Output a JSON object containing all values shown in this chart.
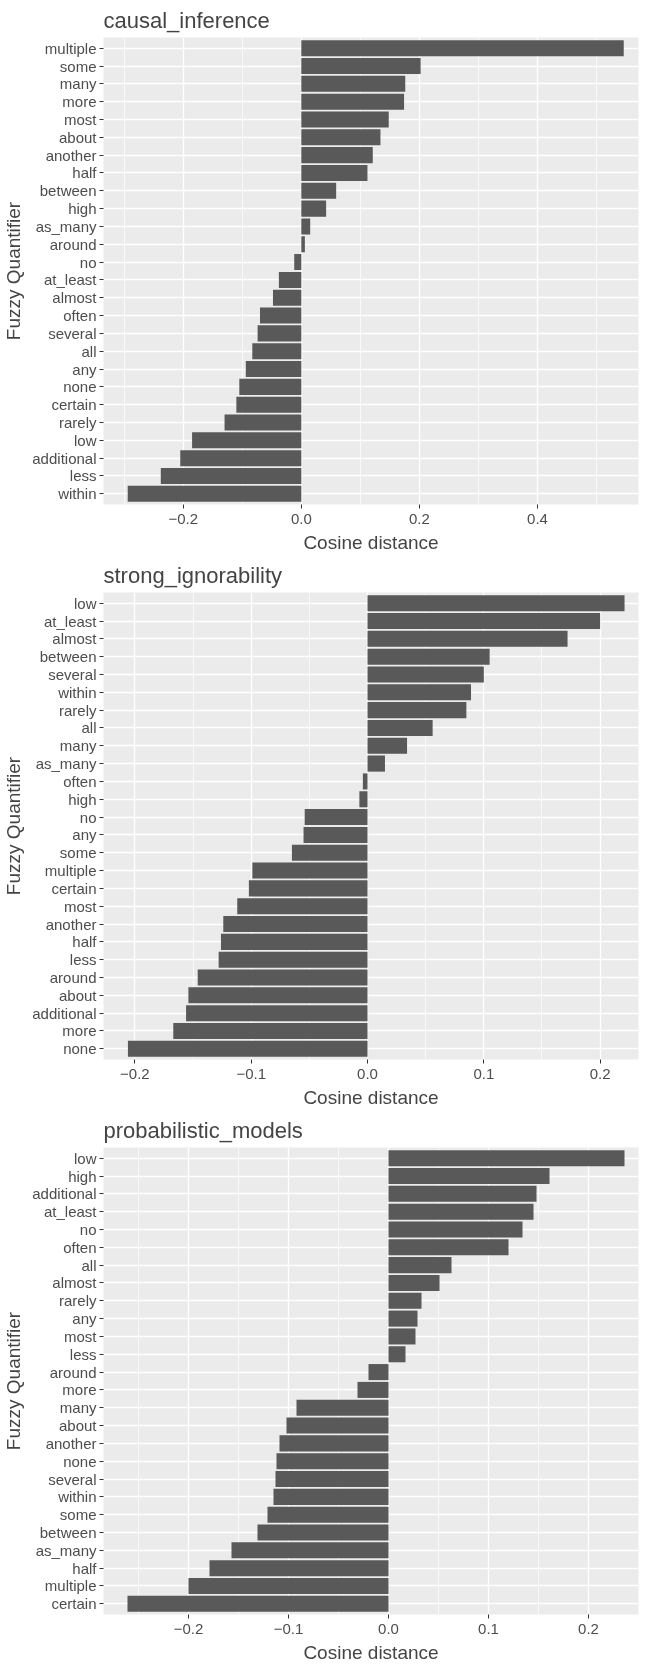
{
  "chart_data": [
    {
      "type": "bar",
      "orientation": "horizontal",
      "title": "causal_inference",
      "xlabel": "Cosine distance",
      "ylabel": "Fuzzy Quantifier",
      "color": "#595959",
      "grid": true,
      "categories": [
        "multiple",
        "some",
        "many",
        "more",
        "most",
        "about",
        "another",
        "half",
        "between",
        "high",
        "as_many",
        "around",
        "no",
        "at_least",
        "almost",
        "often",
        "several",
        "all",
        "any",
        "none",
        "certain",
        "rarely",
        "low",
        "additional",
        "less",
        "within"
      ],
      "values": [
        0.546,
        0.202,
        0.176,
        0.174,
        0.148,
        0.134,
        0.121,
        0.112,
        0.059,
        0.042,
        0.015,
        0.006,
        -0.012,
        -0.038,
        -0.048,
        -0.07,
        -0.074,
        -0.083,
        -0.094,
        -0.105,
        -0.11,
        -0.13,
        -0.185,
        -0.205,
        -0.238,
        -0.294
      ],
      "xlim": [
        -0.335,
        0.571
      ],
      "xticks": [
        {
          "value": -0.2,
          "label": "−0.2"
        },
        {
          "value": 0,
          "label": "0.0"
        },
        0.2,
        0.4
      ]
    },
    {
      "type": "bar",
      "orientation": "horizontal",
      "title": "strong_ignorability",
      "xlabel": "Cosine distance",
      "ylabel": "Fuzzy Quantifier",
      "color": "#595959",
      "grid": true,
      "categories": [
        "low",
        "at_least",
        "almost",
        "between",
        "several",
        "within",
        "rarely",
        "all",
        "many",
        "as_many",
        "often",
        "high",
        "no",
        "any",
        "some",
        "multiple",
        "certain",
        "most",
        "another",
        "half",
        "less",
        "around",
        "about",
        "additional",
        "more",
        "none"
      ],
      "values": [
        0.221,
        0.2,
        0.172,
        0.105,
        0.1,
        0.089,
        0.085,
        0.056,
        0.034,
        0.015,
        -0.004,
        -0.007,
        -0.054,
        -0.055,
        -0.065,
        -0.099,
        -0.102,
        -0.112,
        -0.124,
        -0.126,
        -0.128,
        -0.146,
        -0.154,
        -0.156,
        -0.167,
        -0.206
      ],
      "xlim": [
        -0.227,
        0.233
      ],
      "xticks": [
        {
          "value": -0.2,
          "label": "−0.2"
        },
        {
          "value": -0.1,
          "label": "−0.1"
        },
        {
          "value": 0,
          "label": "0.0"
        },
        0.1,
        0.2
      ]
    },
    {
      "type": "bar",
      "orientation": "horizontal",
      "title": "probabilistic_models",
      "xlabel": "Cosine distance",
      "ylabel": "Fuzzy Quantifier",
      "color": "#595959",
      "grid": true,
      "categories": [
        "low",
        "high",
        "additional",
        "at_least",
        "no",
        "often",
        "all",
        "almost",
        "rarely",
        "any",
        "most",
        "less",
        "around",
        "more",
        "many",
        "about",
        "another",
        "none",
        "several",
        "within",
        "some",
        "between",
        "as_many",
        "half",
        "multiple",
        "certain"
      ],
      "values": [
        0.236,
        0.161,
        0.148,
        0.145,
        0.134,
        0.12,
        0.063,
        0.051,
        0.033,
        0.029,
        0.027,
        0.017,
        -0.02,
        -0.031,
        -0.092,
        -0.102,
        -0.109,
        -0.112,
        -0.113,
        -0.115,
        -0.121,
        -0.131,
        -0.157,
        -0.179,
        -0.2,
        -0.261
      ],
      "xlim": [
        -0.285,
        0.25
      ],
      "xticks": [
        {
          "value": -0.2,
          "label": "−0.2"
        },
        {
          "value": -0.1,
          "label": "−0.1"
        },
        {
          "value": 0,
          "label": "0.0"
        },
        0.1,
        0.2
      ]
    }
  ]
}
